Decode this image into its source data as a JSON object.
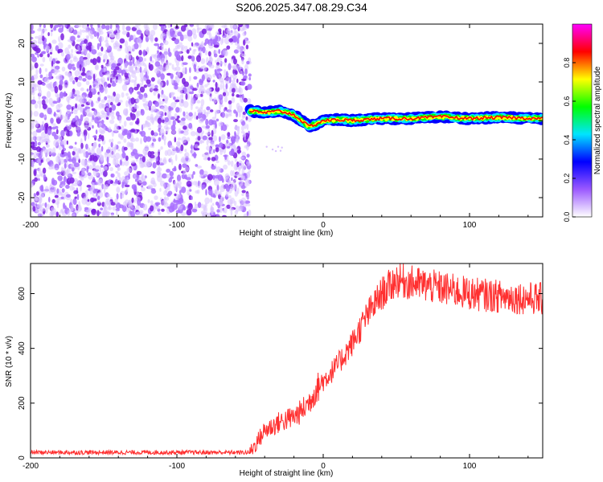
{
  "title": "S206.2025.347.08.29.C34",
  "colors": {
    "noise": "#8a2be2",
    "snr_line": "#ff3030",
    "colormap_stops": [
      "#ffffff",
      "#9b59ff",
      "#0000ff",
      "#00e5ff",
      "#00ff00",
      "#ffff00",
      "#ff0000",
      "#ff00ff"
    ]
  },
  "chart_data": [
    {
      "type": "heatmap",
      "xlabel": "Height of straight line (km)",
      "ylabel": "Frequency (Hz)",
      "xlim": [
        -200,
        150
      ],
      "ylim": [
        -25,
        25
      ],
      "xticks": [
        "-200",
        "-100",
        "0",
        "100"
      ],
      "xtick_values": [
        -200,
        -100,
        0,
        100
      ],
      "yticks": [
        "-20",
        "-10",
        "0",
        "10",
        "20"
      ],
      "ytick_values": [
        -20,
        -10,
        0,
        10,
        20
      ],
      "noise_region_x": [
        -200,
        -50
      ],
      "ridge": {
        "x": [
          -50,
          -40,
          -30,
          -20,
          -15,
          -10,
          -5,
          0,
          10,
          20,
          40,
          60,
          80,
          100,
          120,
          150
        ],
        "y": [
          2.5,
          2.0,
          2.5,
          1.5,
          0.0,
          -1.5,
          -1.0,
          0.0,
          0.2,
          0.0,
          0.5,
          0.5,
          1.0,
          0.5,
          0.8,
          0.5
        ]
      },
      "colorbar": {
        "label": "Normalized spectral amplitude",
        "range": [
          0,
          1
        ],
        "ticks": [
          "0.0",
          "0.2",
          "0.4",
          "0.6",
          "0.8"
        ],
        "tick_values": [
          0,
          0.2,
          0.4,
          0.6,
          0.8
        ]
      }
    },
    {
      "type": "line",
      "xlabel": "Height of straight line (km)",
      "ylabel": "SNR (10 * v/v)",
      "xlim": [
        -200,
        150
      ],
      "ylim": [
        0,
        710
      ],
      "xticks": [
        "-200",
        "-100",
        "0",
        "100"
      ],
      "xtick_values": [
        -200,
        -100,
        0,
        100
      ],
      "yticks": [
        "0",
        "200",
        "400",
        "600"
      ],
      "ytick_values": [
        0,
        200,
        400,
        600
      ],
      "series": [
        {
          "x": [
            -200,
            -150,
            -100,
            -55,
            -50,
            -45,
            -40,
            -30,
            -20,
            -15,
            -10,
            -5,
            0,
            10,
            20,
            30,
            40,
            50,
            60,
            80,
            100,
            120,
            150
          ],
          "values": [
            20,
            20,
            20,
            20,
            20,
            60,
            100,
            130,
            150,
            170,
            200,
            250,
            280,
            340,
            420,
            520,
            600,
            650,
            640,
            620,
            600,
            590,
            580
          ]
        }
      ]
    }
  ]
}
